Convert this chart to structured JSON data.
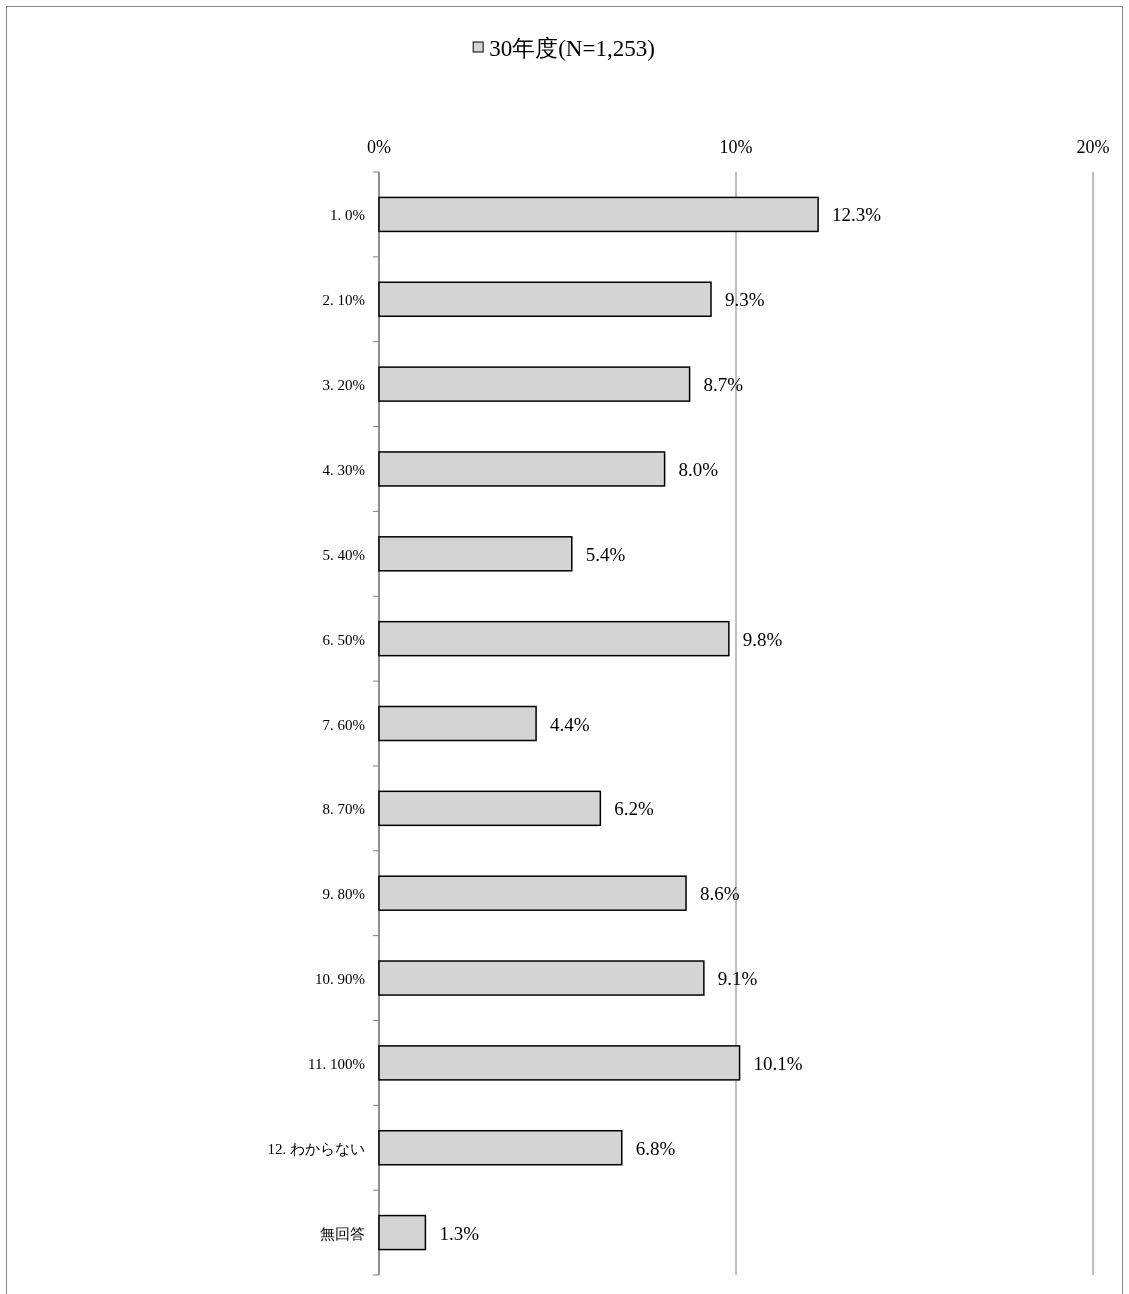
{
  "chart_data": {
    "type": "bar",
    "orientation": "horizontal",
    "categories": [
      "1. 0%",
      "2. 10%",
      "3. 20%",
      "4. 30%",
      "5. 40%",
      "6. 50%",
      "7. 60%",
      "8. 70%",
      "9. 80%",
      "10. 90%",
      "11. 100%",
      "12. わからない",
      "無回答"
    ],
    "series": [
      {
        "name": "30年度(N=1,253)",
        "color": "#d4d4d4",
        "values": [
          12.3,
          9.3,
          8.7,
          8.0,
          5.4,
          9.8,
          4.4,
          6.2,
          8.6,
          9.1,
          10.1,
          6.8,
          1.3
        ],
        "value_labels": [
          "12.3%",
          "9.3%",
          "8.7%",
          "8.0%",
          "5.4%",
          "9.8%",
          "4.4%",
          "6.2%",
          "8.6%",
          "9.1%",
          "10.1%",
          "6.8%",
          "1.3%"
        ]
      }
    ],
    "xlim": [
      0,
      20
    ],
    "xticks": [
      {
        "value": 0,
        "label": "0%"
      },
      {
        "value": 10,
        "label": "10%"
      },
      {
        "value": 20,
        "label": "20%"
      }
    ],
    "grid": "x",
    "legend": "top"
  }
}
